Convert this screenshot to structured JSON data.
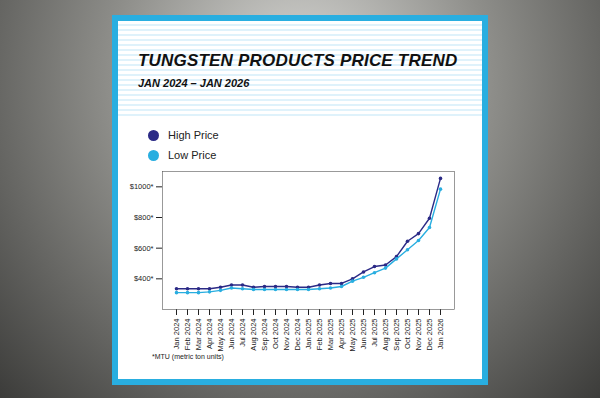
{
  "chart_data": {
    "type": "line",
    "title": "TUNGSTEN PRODUCTS PRICE TREND",
    "subtitle": "JAN 2024 – JAN 2026",
    "note": "*MTU (metric ton units)",
    "categories": [
      "Jan 2024",
      "Feb 2024",
      "Mar 2024",
      "Apr 2024",
      "May 2024",
      "Jun 2024",
      "Jul 2024",
      "Aug 2024",
      "Sep 2024",
      "Oct 2024",
      "Nov 2024",
      "Dec 2024",
      "Jan 2025",
      "Feb 2025",
      "Mar 2025",
      "Apr 2025",
      "May 2025",
      "Jun 2025",
      "Jul 2025",
      "Aug 2025",
      "Sep 2025",
      "Oct 2025",
      "Nov 2025",
      "Dec 2025",
      "Jan 2026"
    ],
    "series": [
      {
        "name": "High Price",
        "color": "#2b2a86",
        "marker": "circle",
        "values": [
          335,
          335,
          335,
          335,
          345,
          360,
          360,
          345,
          350,
          350,
          350,
          345,
          345,
          360,
          370,
          370,
          400,
          445,
          480,
          490,
          545,
          645,
          695,
          795,
          1055
        ]
      },
      {
        "name": "Low Price",
        "color": "#29aee0",
        "marker": "circle",
        "values": [
          310,
          310,
          310,
          315,
          325,
          340,
          335,
          330,
          330,
          330,
          330,
          330,
          330,
          335,
          340,
          350,
          385,
          410,
          440,
          470,
          530,
          590,
          650,
          735,
          985
        ]
      }
    ],
    "ylim": [
      200,
      1100
    ],
    "yticks": [
      {
        "value": 400,
        "label": "$400*"
      },
      {
        "value": 600,
        "label": "$600*"
      },
      {
        "value": 800,
        "label": "$800*"
      },
      {
        "value": 1000,
        "label": "$1000*"
      }
    ],
    "grid": false,
    "legend": "top-left"
  }
}
